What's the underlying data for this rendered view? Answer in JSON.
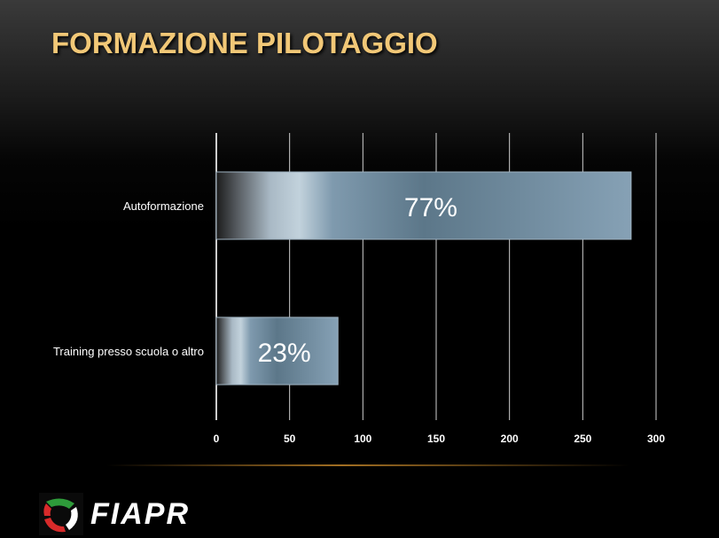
{
  "slide": {
    "title": "FORMAZIONE PILOTAGGIO"
  },
  "brand": {
    "logo_text": "FIAPR"
  },
  "chart_data": {
    "type": "bar",
    "orientation": "horizontal",
    "categories": [
      "Autoformazione",
      "Training presso scuola o altro"
    ],
    "values": [
      283,
      83
    ],
    "data_labels": [
      "77%",
      "23%"
    ],
    "xlim": [
      0,
      300
    ],
    "xticks": [
      0,
      50,
      100,
      150,
      200,
      250,
      300
    ],
    "grid": true,
    "legend": "none",
    "colors": {
      "bar": "#7f9aae",
      "bar_highlight": "#c2d2dc",
      "bar_dark": "#1c1c1c",
      "grid": "#cfcfcf",
      "text": "#ffffff"
    }
  }
}
